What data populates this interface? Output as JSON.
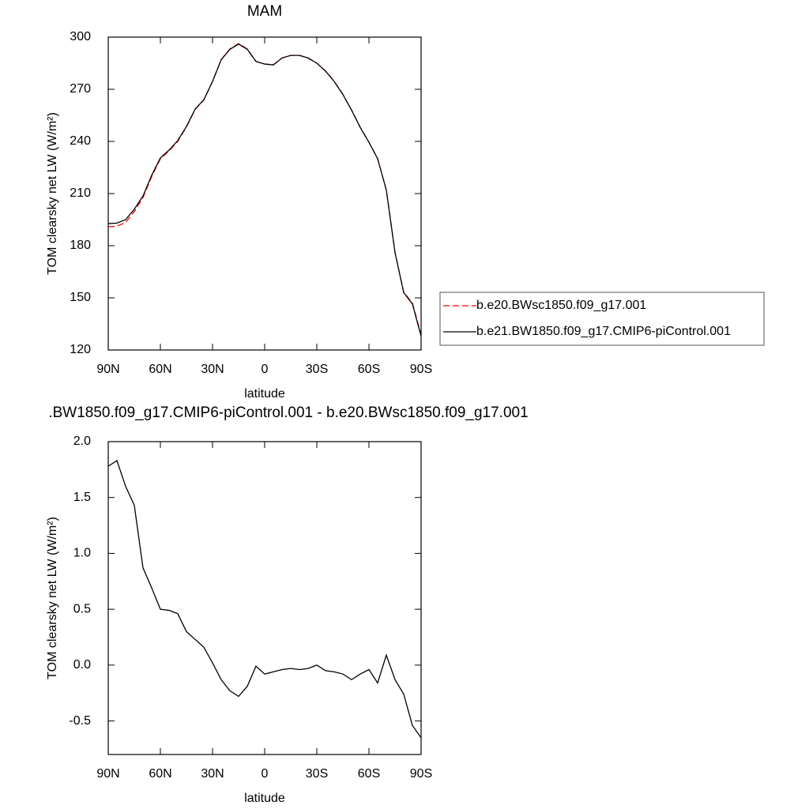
{
  "chart_data": [
    {
      "type": "line",
      "title": "MAM",
      "x_label": "latitude",
      "y_label": "TOM clearsky net LW (W/m²)",
      "x": [
        90,
        85,
        80,
        75,
        70,
        65,
        60,
        55,
        50,
        45,
        40,
        35,
        30,
        25,
        20,
        15,
        10,
        5,
        0,
        -5,
        -10,
        -15,
        -20,
        -25,
        -30,
        -35,
        -40,
        -45,
        -50,
        -55,
        -60,
        -65,
        -70,
        -75,
        -80,
        -85,
        -90
      ],
      "xlim": [
        90,
        -90
      ],
      "xticks": [
        {
          "value": 90,
          "label": "90N"
        },
        {
          "value": 60,
          "label": "60N"
        },
        {
          "value": 30,
          "label": "30N"
        },
        0,
        {
          "value": -30,
          "label": "30S"
        },
        {
          "value": -60,
          "label": "60S"
        },
        {
          "value": -90,
          "label": "90S"
        }
      ],
      "ylim": [
        120,
        300
      ],
      "yticks": [
        120,
        150,
        180,
        210,
        240,
        270,
        300
      ],
      "legend": "outside-right",
      "series": [
        {
          "name": "b.e20.BWsc1850.f09_g17.001",
          "color": "#ff0000",
          "line_style": "dashed",
          "values": [
            190.9,
            191.2,
            193.4,
            199.6,
            207.7,
            219.8,
            230,
            234.5,
            240,
            248.3,
            258.4,
            263.8,
            274.5,
            287.1,
            293.2,
            296.3,
            293.2,
            286,
            284.6,
            284.1,
            288,
            289.5,
            289.5,
            288,
            285,
            280.6,
            274.6,
            267.1,
            258.1,
            248.1,
            239.5,
            230.2,
            211.9,
            176.1,
            153.3,
            147,
            128.7
          ]
        },
        {
          "name": "b.e21.BW1850.f09_g17.CMIP6-piControl.001",
          "color": "#000000",
          "line_style": "solid",
          "values": [
            192.7,
            193,
            195,
            201,
            208.6,
            220.5,
            230.5,
            235,
            240.5,
            248.6,
            258.6,
            264,
            274.5,
            287,
            293,
            296,
            293,
            286,
            284.5,
            284,
            288,
            289.5,
            289.5,
            288,
            285,
            280.5,
            274.5,
            267,
            258,
            248,
            239.5,
            230,
            212,
            176,
            153,
            146.5,
            128
          ]
        }
      ]
    },
    {
      "type": "line",
      "title": ".BW1850.f09_g17.CMIP6-piControl.001 - b.e20.BWsc1850.f09_g17.001",
      "x_label": "latitude",
      "y_label": "TOM clearsky net LW (W/m²)",
      "x": [
        90,
        85,
        80,
        75,
        70,
        65,
        60,
        55,
        50,
        45,
        40,
        35,
        30,
        25,
        20,
        15,
        10,
        5,
        0,
        -5,
        -10,
        -15,
        -20,
        -25,
        -30,
        -35,
        -40,
        -45,
        -50,
        -55,
        -60,
        -65,
        -70,
        -75,
        -80,
        -85,
        -90
      ],
      "xlim": [
        90,
        -90
      ],
      "xticks": [
        {
          "value": 90,
          "label": "90N"
        },
        {
          "value": 60,
          "label": "60N"
        },
        {
          "value": 30,
          "label": "30N"
        },
        0,
        {
          "value": -30,
          "label": "30S"
        },
        {
          "value": -60,
          "label": "60S"
        },
        {
          "value": -90,
          "label": "90S"
        }
      ],
      "ylim": [
        -0.8,
        2.0
      ],
      "yticks": [
        {
          "value": -0.5,
          "label": "-0.5"
        },
        {
          "value": 0,
          "label": "0.0"
        },
        {
          "value": 0.5,
          "label": "0.5"
        },
        {
          "value": 1,
          "label": "1.0"
        },
        {
          "value": 1.5,
          "label": "1.5"
        },
        {
          "value": 2,
          "label": "2.0"
        }
      ],
      "series": [
        {
          "color": "#000000",
          "line_style": "solid",
          "values": [
            1.78,
            1.83,
            1.6,
            1.43,
            0.87,
            0.69,
            0.5,
            0.49,
            0.46,
            0.3,
            0.23,
            0.16,
            0.02,
            -0.13,
            -0.23,
            -0.28,
            -0.19,
            -0.01,
            -0.08,
            -0.06,
            -0.04,
            -0.03,
            -0.04,
            -0.03,
            0.0,
            -0.05,
            -0.06,
            -0.08,
            -0.13,
            -0.08,
            -0.04,
            -0.16,
            0.09,
            -0.13,
            -0.26,
            -0.54,
            -0.65
          ]
        }
      ]
    }
  ]
}
